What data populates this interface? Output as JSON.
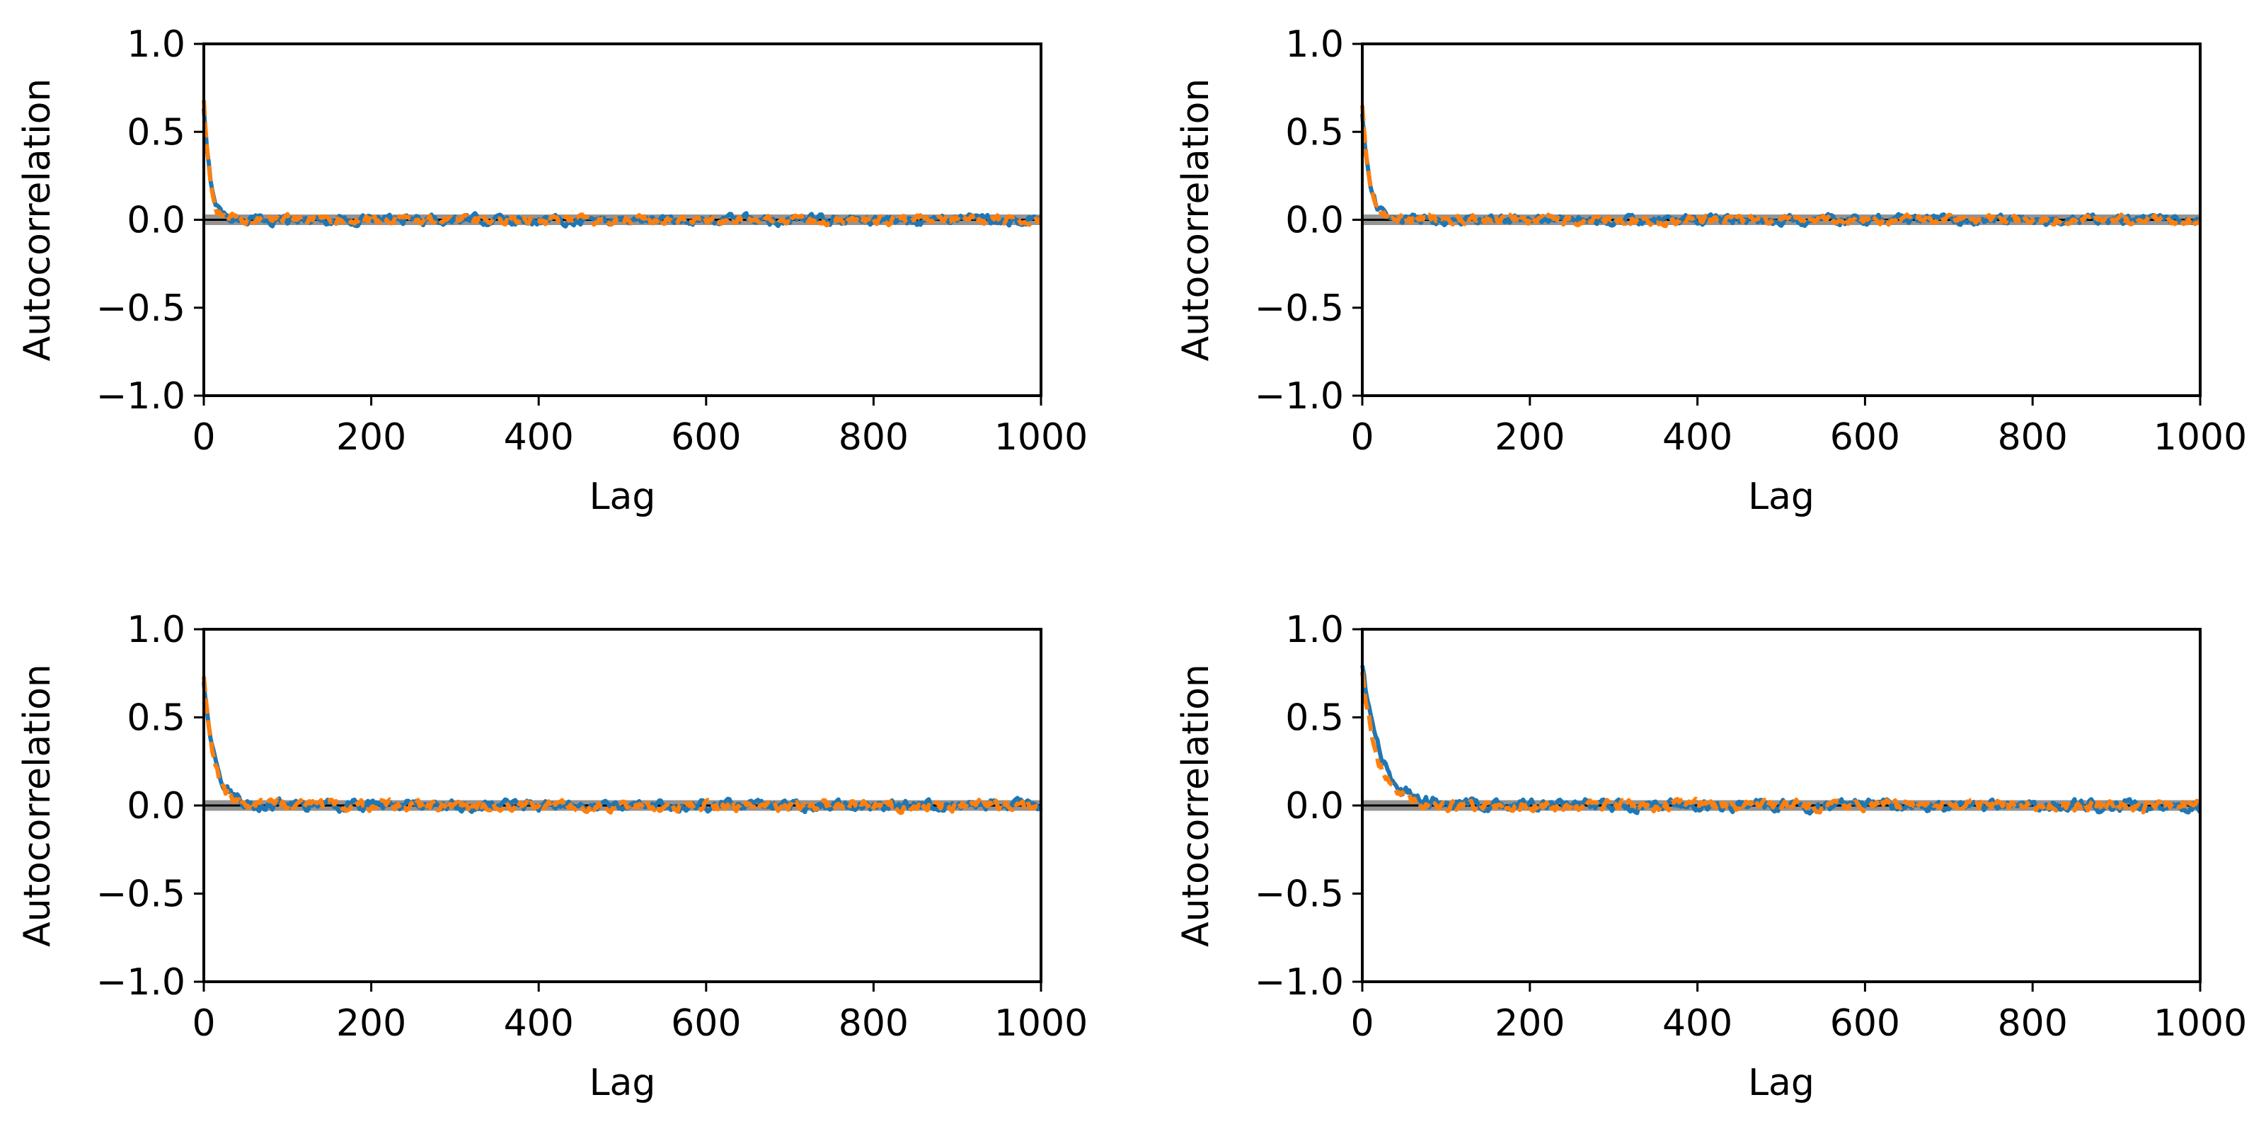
{
  "chart_data": [
    {
      "type": "line",
      "panel": "top-left",
      "xlabel": "Lag",
      "ylabel": "Autocorrelation",
      "xlim": [
        0,
        1000
      ],
      "ylim": [
        -1.0,
        1.0
      ],
      "xticks": [
        "0",
        "200",
        "400",
        "600",
        "800",
        "1000"
      ],
      "yticks": [
        "−1.0",
        "−0.5",
        "0.0",
        "0.5",
        "1.0"
      ],
      "grid": false,
      "confidence_band": [
        -0.03,
        0.03
      ],
      "series": [
        {
          "color": "#1f77b4",
          "linestyle": "solid",
          "start_value": 0.62,
          "decay_lag": 8,
          "noise_amplitude": 0.022
        },
        {
          "color": "#ff7f0e",
          "linestyle": "dashed",
          "start_value": 0.66,
          "decay_lag": 7,
          "noise_amplitude": 0.02
        }
      ]
    },
    {
      "type": "line",
      "panel": "top-right",
      "xlabel": "Lag",
      "ylabel": "Autocorrelation",
      "xlim": [
        0,
        1000
      ],
      "ylim": [
        -1.0,
        1.0
      ],
      "xticks": [
        "0",
        "200",
        "400",
        "600",
        "800",
        "1000"
      ],
      "yticks": [
        "−1.0",
        "−0.5",
        "0.0",
        "0.5",
        "1.0"
      ],
      "grid": false,
      "confidence_band": [
        -0.03,
        0.03
      ],
      "series": [
        {
          "color": "#1f77b4",
          "linestyle": "solid",
          "start_value": 0.6,
          "decay_lag": 9,
          "noise_amplitude": 0.02
        },
        {
          "color": "#ff7f0e",
          "linestyle": "dashed",
          "start_value": 0.66,
          "decay_lag": 8,
          "noise_amplitude": 0.02
        }
      ]
    },
    {
      "type": "line",
      "panel": "bottom-left",
      "xlabel": "Lag",
      "ylabel": "Autocorrelation",
      "xlim": [
        0,
        1000
      ],
      "ylim": [
        -1.0,
        1.0
      ],
      "xticks": [
        "0",
        "200",
        "400",
        "600",
        "800",
        "1000"
      ],
      "yticks": [
        "−1.0",
        "−0.5",
        "0.0",
        "0.5",
        "1.0"
      ],
      "grid": false,
      "confidence_band": [
        -0.03,
        0.03
      ],
      "series": [
        {
          "color": "#1f77b4",
          "linestyle": "solid",
          "start_value": 0.7,
          "decay_lag": 14,
          "noise_amplitude": 0.024
        },
        {
          "color": "#ff7f0e",
          "linestyle": "dashed",
          "start_value": 0.74,
          "decay_lag": 12,
          "noise_amplitude": 0.024
        }
      ]
    },
    {
      "type": "line",
      "panel": "bottom-right",
      "xlabel": "Lag",
      "ylabel": "Autocorrelation",
      "xlim": [
        0,
        1000
      ],
      "ylim": [
        -1.0,
        1.0
      ],
      "xticks": [
        "0",
        "200",
        "400",
        "600",
        "800",
        "1000"
      ],
      "yticks": [
        "−1.0",
        "−0.5",
        "0.0",
        "0.5",
        "1.0"
      ],
      "grid": false,
      "confidence_band": [
        -0.03,
        0.03
      ],
      "series": [
        {
          "color": "#1f77b4",
          "linestyle": "solid",
          "start_value": 0.78,
          "decay_lag": 22,
          "noise_amplitude": 0.026
        },
        {
          "color": "#ff7f0e",
          "linestyle": "dashed",
          "start_value": 0.76,
          "decay_lag": 18,
          "noise_amplitude": 0.024
        }
      ]
    }
  ]
}
